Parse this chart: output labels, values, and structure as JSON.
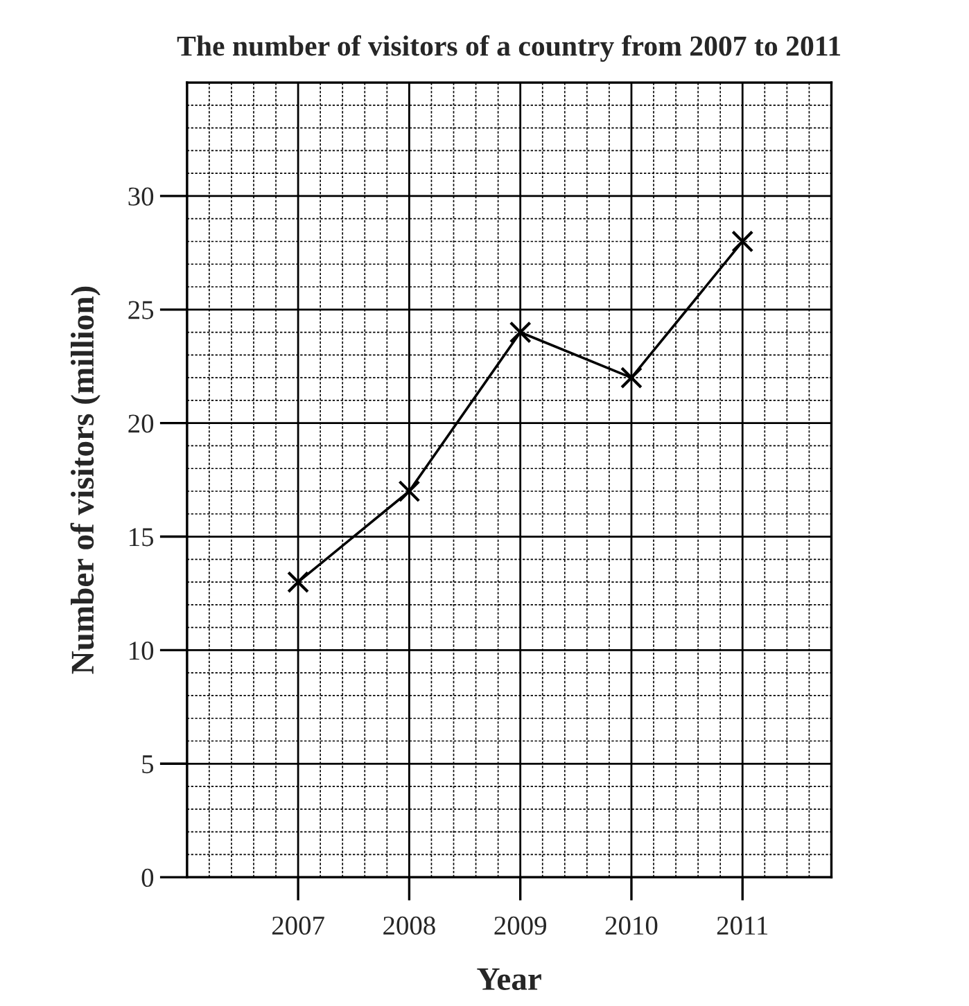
{
  "chart_data": {
    "type": "line",
    "title": "The number of visitors of a country from 2007 to 2011",
    "xlabel": "Year",
    "ylabel": "Number of visitors (million)",
    "x": [
      2007,
      2008,
      2009,
      2010,
      2011
    ],
    "series": [
      {
        "color": "#000000",
        "values": [
          13,
          17,
          24,
          22,
          28
        ]
      }
    ],
    "xlim": [
      2006,
      2011.8
    ],
    "xticks": [
      2007,
      2008,
      2009,
      2010,
      2011
    ],
    "ylim": [
      0,
      35
    ],
    "yticks": [
      0,
      5,
      10,
      15,
      20,
      25,
      30
    ],
    "grid": true,
    "marker": "cross",
    "line_style": "solid"
  }
}
